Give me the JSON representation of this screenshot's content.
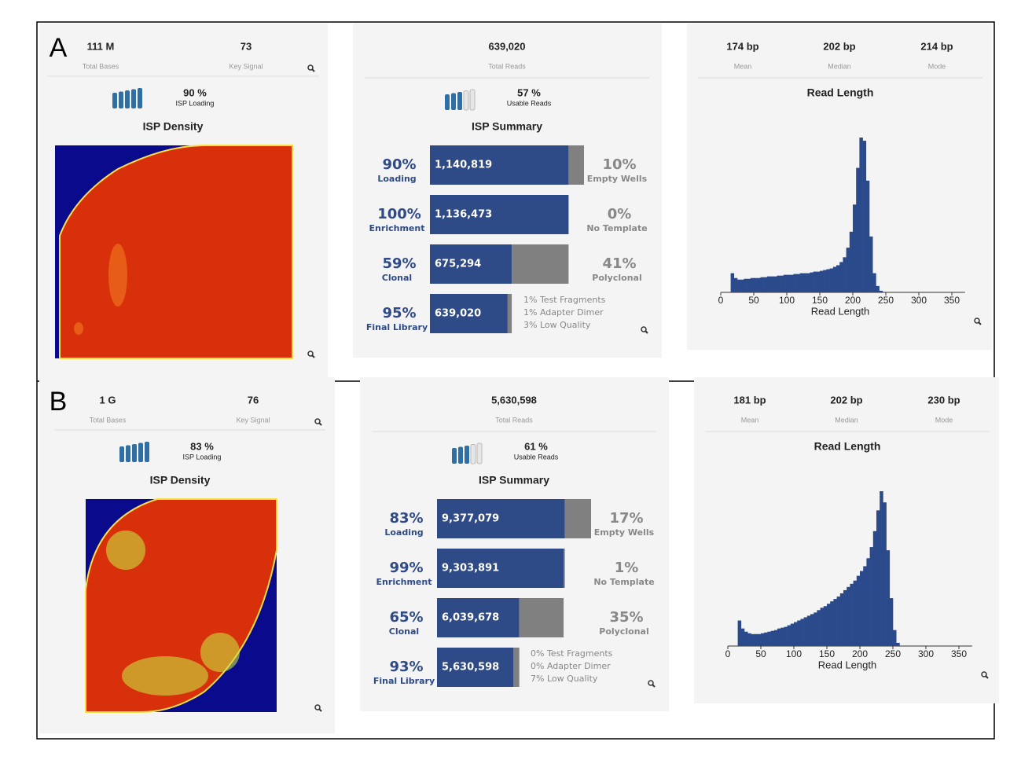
{
  "panels": [
    {
      "label": "A",
      "density": {
        "total_bases": "111 M",
        "total_bases_label": "Total Bases",
        "key_signal": "73",
        "key_signal_label": "Key Signal",
        "isp_loading": "90 %",
        "isp_loading_label": "ISP Loading",
        "title": "ISP Density"
      },
      "summary": {
        "total_reads": "639,020",
        "total_reads_label": "Total Reads",
        "usable_reads": "57 %",
        "usable_reads_label": "Usable Reads",
        "title": "ISP Summary",
        "rows": [
          {
            "pct": {
              "value": 90,
              "label": "90%"
            },
            "name": "Loading",
            "count": "1,140,819",
            "other_pct": {
              "value": 10,
              "label": "10%"
            },
            "other_name": "Empty Wells"
          },
          {
            "pct": {
              "value": 100,
              "label": "100%"
            },
            "name": "Enrichment",
            "count": "1,136,473",
            "other_pct": {
              "value": 0,
              "label": "0%"
            },
            "other_name": "No Template"
          },
          {
            "pct": {
              "value": 59,
              "label": "59%"
            },
            "name": "Clonal",
            "count": "675,294",
            "other_pct": {
              "value": 41,
              "label": "41%"
            },
            "other_name": "Polyclonal"
          },
          {
            "pct": {
              "value": 95,
              "label": "95%"
            },
            "name": "Final Library",
            "count": "639,020",
            "notes": [
              "1% Test Fragments",
              "1% Adapter Dimer",
              "3% Low Quality"
            ]
          }
        ]
      },
      "read_length": {
        "mean": "174 bp",
        "mean_label": "Mean",
        "median": "202 bp",
        "median_label": "Median",
        "mode": "214 bp",
        "mode_label": "Mode",
        "title": "Read Length",
        "chart_data": {
          "type": "histogram",
          "color": "#2b4a8b",
          "xlabel": "Read Length",
          "xlim": [
            0,
            370
          ],
          "xticks": [
            0,
            50,
            100,
            150,
            200,
            250,
            300,
            350
          ],
          "bins": [
            15,
            20,
            25,
            30,
            35,
            40,
            45,
            50,
            55,
            60,
            65,
            70,
            75,
            80,
            85,
            90,
            95,
            100,
            105,
            110,
            115,
            120,
            125,
            130,
            135,
            140,
            145,
            150,
            155,
            160,
            165,
            170,
            175,
            180,
            185,
            190,
            195,
            200,
            205,
            210,
            215,
            220,
            225,
            230,
            235,
            240,
            245,
            250
          ],
          "counts": [
            12,
            9,
            8,
            8,
            8.5,
            8.5,
            9,
            9,
            9,
            9.5,
            9.5,
            10,
            10,
            10,
            10.5,
            10.5,
            11,
            11,
            11,
            11.5,
            11.5,
            12,
            12,
            12,
            12.5,
            13,
            13,
            13.5,
            14,
            14.5,
            15,
            16,
            17,
            19,
            22,
            28,
            38,
            55,
            78,
            97,
            95,
            70,
            35,
            12,
            4,
            1,
            0
          ]
        }
      }
    },
    {
      "label": "B",
      "density": {
        "total_bases": "1 G",
        "total_bases_label": "Total Bases",
        "key_signal": "76",
        "key_signal_label": "Key Signal",
        "isp_loading": "83 %",
        "isp_loading_label": "ISP Loading",
        "title": "ISP Density"
      },
      "summary": {
        "total_reads": "5,630,598",
        "total_reads_label": "Total Reads",
        "usable_reads": "61 %",
        "usable_reads_label": "Usable Reads",
        "title": "ISP Summary",
        "rows": [
          {
            "pct": {
              "value": 83,
              "label": "83%"
            },
            "name": "Loading",
            "count": "9,377,079",
            "other_pct": {
              "value": 17,
              "label": "17%"
            },
            "other_name": "Empty Wells"
          },
          {
            "pct": {
              "value": 99,
              "label": "99%"
            },
            "name": "Enrichment",
            "count": "9,303,891",
            "other_pct": {
              "value": 1,
              "label": "1%"
            },
            "other_name": "No Template"
          },
          {
            "pct": {
              "value": 65,
              "label": "65%"
            },
            "name": "Clonal",
            "count": "6,039,678",
            "other_pct": {
              "value": 35,
              "label": "35%"
            },
            "other_name": "Polyclonal"
          },
          {
            "pct": {
              "value": 93,
              "label": "93%"
            },
            "name": "Final Library",
            "count": "5,630,598",
            "notes": [
              "0% Test Fragments",
              "0% Adapter Dimer",
              "7% Low Quality"
            ]
          }
        ]
      },
      "read_length": {
        "mean": "181 bp",
        "mean_label": "Mean",
        "median": "202 bp",
        "median_label": "Median",
        "mode": "230 bp",
        "mode_label": "Mode",
        "title": "Read Length",
        "chart_data": {
          "type": "histogram",
          "color": "#2b4a8b",
          "xlabel": "Read Length",
          "xlim": [
            0,
            370
          ],
          "xticks": [
            0,
            50,
            100,
            150,
            200,
            250,
            300,
            350
          ],
          "bins": [
            15,
            20,
            25,
            30,
            35,
            40,
            45,
            50,
            55,
            60,
            65,
            70,
            75,
            80,
            85,
            90,
            95,
            100,
            105,
            110,
            115,
            120,
            125,
            130,
            135,
            140,
            145,
            150,
            155,
            160,
            165,
            170,
            175,
            180,
            185,
            190,
            195,
            200,
            205,
            210,
            215,
            220,
            225,
            230,
            235,
            240,
            245,
            250,
            255,
            260
          ],
          "counts": [
            16,
            11,
            9,
            8,
            7.5,
            7.5,
            7.5,
            8,
            8.5,
            9,
            9.5,
            10,
            11,
            11.5,
            12,
            13,
            14,
            15,
            16,
            17,
            18,
            19,
            20,
            21,
            22.5,
            24,
            25,
            26.5,
            28,
            29.5,
            31,
            33,
            35,
            37,
            39,
            41,
            44,
            47,
            50,
            55,
            62,
            72,
            85,
            97,
            90,
            60,
            30,
            10,
            2
          ]
        }
      }
    }
  ]
}
